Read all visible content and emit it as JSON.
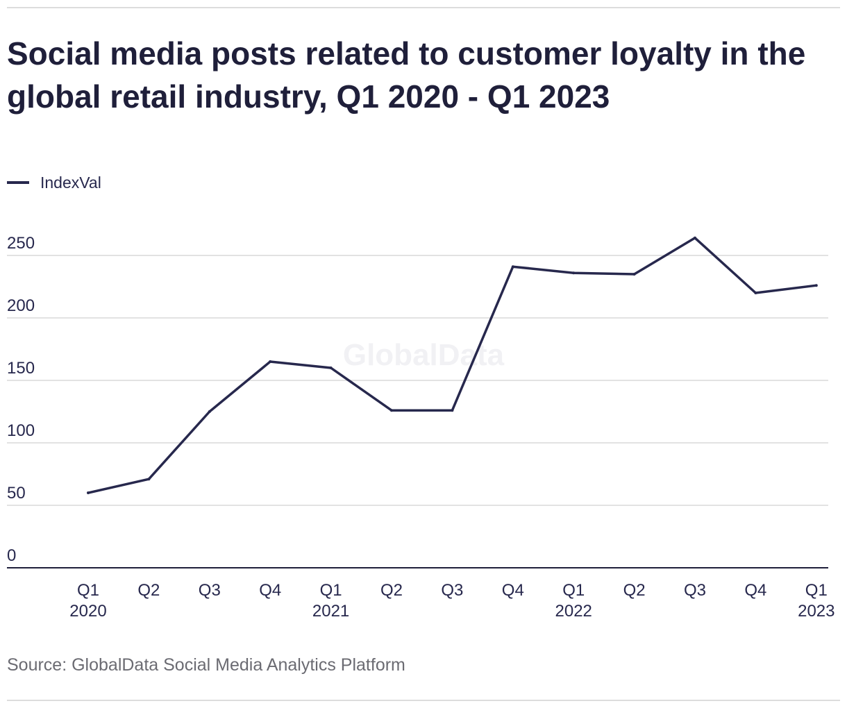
{
  "title": "Social media posts related to customer loyalty in the global retail industry, Q1 2020 - Q1 2023",
  "source": "Source: GlobalData Social Media Analytics Platform",
  "watermark": "GlobalData",
  "colors": {
    "line": "#27284d",
    "grid": "#d9d9d9",
    "axis": "#1f1f3a"
  },
  "chart_data": {
    "type": "line",
    "categories": [
      "Q1 2020",
      "Q2",
      "Q3",
      "Q4",
      "Q1 2021",
      "Q2",
      "Q3",
      "Q4",
      "Q1 2022",
      "Q2",
      "Q3",
      "Q4",
      "Q1 2023"
    ],
    "tick_labels": [
      [
        "Q1",
        "2020"
      ],
      [
        "Q2"
      ],
      [
        "Q3"
      ],
      [
        "Q4"
      ],
      [
        "Q1",
        "2021"
      ],
      [
        "Q2"
      ],
      [
        "Q3"
      ],
      [
        "Q4"
      ],
      [
        "Q1",
        "2022"
      ],
      [
        "Q2"
      ],
      [
        "Q3"
      ],
      [
        "Q4"
      ],
      [
        "Q1",
        "2023"
      ]
    ],
    "series": [
      {
        "name": "IndexVal",
        "values": [
          60,
          71,
          125,
          165,
          160,
          126,
          126,
          241,
          236,
          235,
          264,
          220,
          226
        ]
      }
    ],
    "ylim": [
      0,
      250
    ],
    "yticks": [
      0,
      50,
      100,
      150,
      200,
      250
    ],
    "grid": true,
    "legend": "top-left",
    "xlabel": "",
    "ylabel": ""
  }
}
